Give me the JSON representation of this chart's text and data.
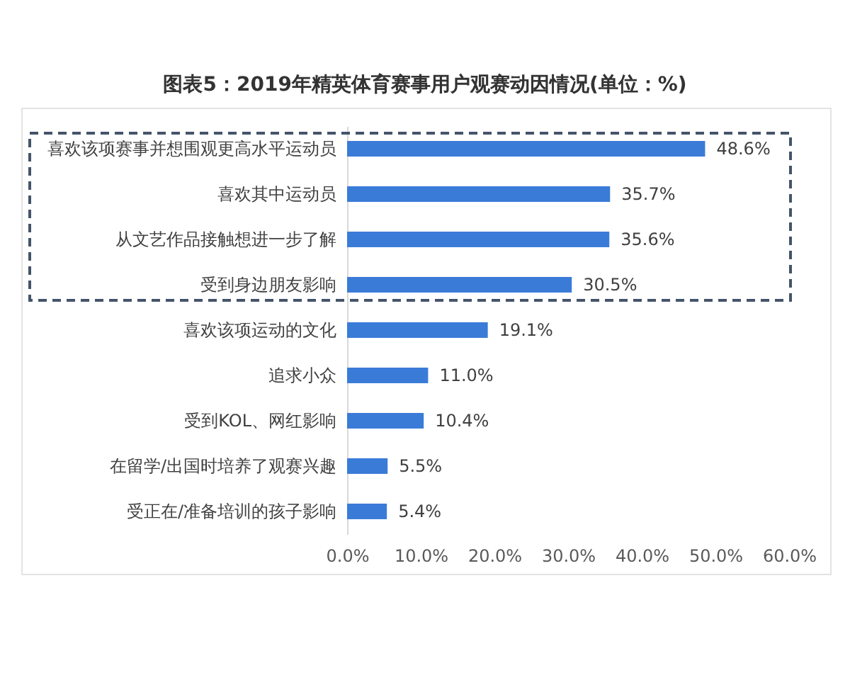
{
  "chart_data": {
    "type": "bar",
    "orientation": "horizontal",
    "title": "图表5：2019年精英体育赛事用户观赛动因情况(单位：%)",
    "categories": [
      "喜欢该项赛事并想围观更高水平运动员",
      "喜欢其中运动员",
      "从文艺作品接触想进一步了解",
      "受到身边朋友影响",
      "喜欢该项运动的文化",
      "追求小众",
      "受到KOL、网红影响",
      "在留学/出国时培养了观赛兴趣",
      "受正在/准备培训的孩子影响"
    ],
    "values": [
      48.6,
      35.7,
      35.6,
      30.5,
      19.1,
      11.0,
      10.4,
      5.5,
      5.4
    ],
    "value_labels": [
      "48.6%",
      "35.7%",
      "35.6%",
      "30.5%",
      "19.1%",
      "11.0%",
      "10.4%",
      "5.5%",
      "5.4%"
    ],
    "color": "#3a7bd8",
    "xlim": [
      0,
      60
    ],
    "xticks": [
      {
        "value": 0,
        "label": "0.0%"
      },
      {
        "value": 10,
        "label": "10.0%"
      },
      {
        "value": 20,
        "label": "20.0%"
      },
      {
        "value": 30,
        "label": "30.0%"
      },
      {
        "value": 40,
        "label": "40.0%"
      },
      {
        "value": 50,
        "label": "50.0%"
      },
      {
        "value": 60,
        "label": "60.0%"
      }
    ]
  }
}
